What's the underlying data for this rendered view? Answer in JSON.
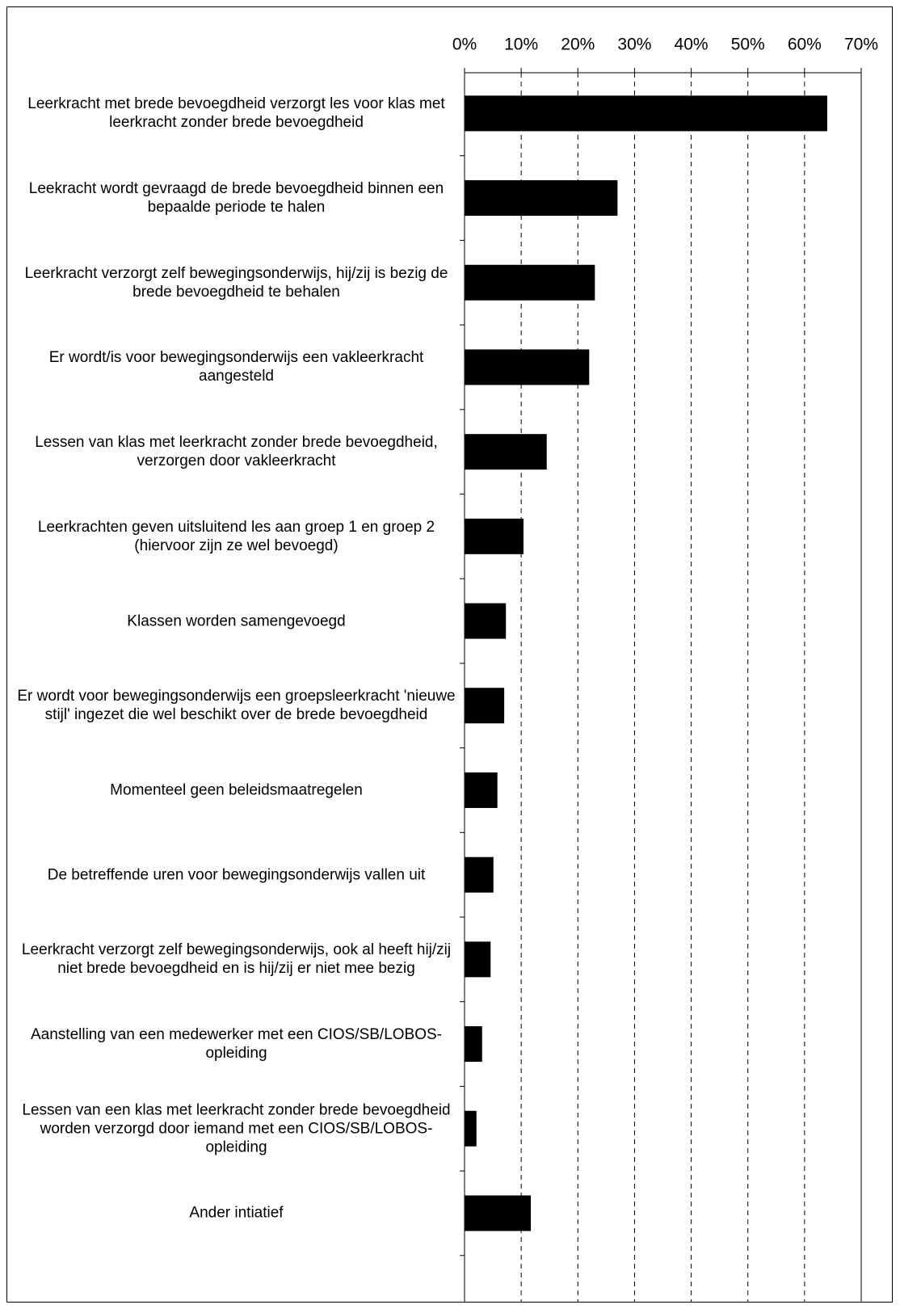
{
  "chart_data": {
    "type": "bar",
    "orientation": "horizontal",
    "categories": [
      "Leerkracht met brede bevoegdheid verzorgt les voor klas met leerkracht zonder brede bevoegdheid",
      "Leekracht wordt gevraagd de brede bevoegdheid binnen een bepaalde periode te halen",
      "Leerkracht verzorgt zelf bewegingsonderwijs, hij/zij is bezig de brede bevoegdheid te behalen",
      "Er wordt/is voor bewegingsonderwijs een vakleerkracht aangesteld",
      "Lessen van klas met leerkracht zonder brede bevoegdheid, verzorgen door vakleerkracht",
      "Leerkrachten geven uitsluitend les aan groep 1 en groep 2 (hiervoor zijn ze wel bevoegd)",
      "Klassen worden samengevoegd",
      "Er wordt voor bewegingsonderwijs een groepsleerkracht 'nieuwe stijl' ingezet die wel beschikt over de brede bevoegdheid",
      "Momenteel geen beleidsmaatregelen",
      "De betreffende uren voor bewegingsonderwijs vallen uit",
      "Leerkracht verzorgt zelf bewegingsonderwijs, ook al heeft hij/zij niet brede bevoegdheid en is hij/zij er niet mee bezig",
      "Aanstelling van een medewerker met een CIOS/SB/LOBOS-opleiding",
      "Lessen van een klas met leerkracht zonder brede bevoegdheid worden verzorgd door iemand met een CIOS/SB/LOBOS-opleiding",
      "Ander intiatief"
    ],
    "values": [
      64,
      27,
      23,
      22,
      14.5,
      10.4,
      7.3,
      7,
      5.8,
      5.1,
      4.6,
      3.1,
      2.1,
      11.7
    ],
    "color": "#000000",
    "xlim": [
      0,
      70
    ],
    "xticks": [
      {
        "value": 0,
        "label": "0%"
      },
      {
        "value": 10,
        "label": "10%"
      },
      {
        "value": 20,
        "label": "20%"
      },
      {
        "value": 30,
        "label": "30%"
      },
      {
        "value": 40,
        "label": "40%"
      },
      {
        "value": 50,
        "label": "50%"
      },
      {
        "value": 60,
        "label": "60%"
      },
      {
        "value": 70,
        "label": "70%"
      }
    ],
    "grid": true
  }
}
